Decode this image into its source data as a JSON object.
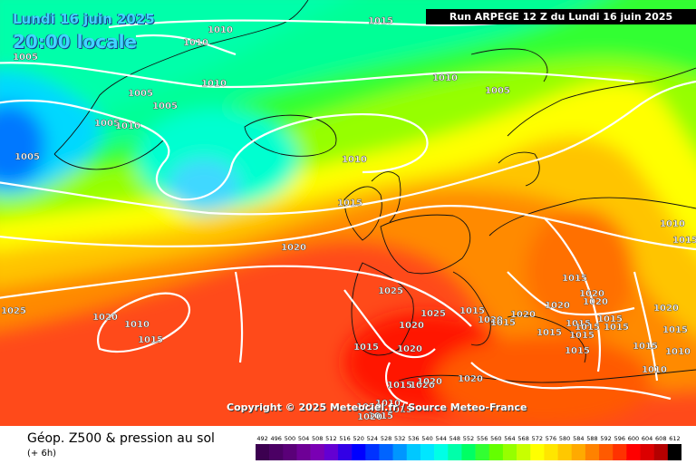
{
  "header": {
    "date": "Lundi 16 juin 2025",
    "time": "20:00 locale",
    "run": "Run ARPEGE 12 Z du Lundi 16 juin 2025"
  },
  "map": {
    "copyright": "Copyright © 2025 Meteociel.fr / Source Meteo-France",
    "isobar_labels": [
      {
        "text": "1015"
      },
      {
        "text": "1010"
      },
      {
        "text": "1010"
      },
      {
        "text": "1005"
      },
      {
        "text": "1010"
      },
      {
        "text": "1005"
      },
      {
        "text": "1005"
      },
      {
        "text": "1005"
      },
      {
        "text": "1010"
      },
      {
        "text": "1010"
      },
      {
        "text": "1005"
      },
      {
        "text": "1005"
      },
      {
        "text": "1010"
      },
      {
        "text": "1015"
      },
      {
        "text": "1020"
      },
      {
        "text": "1025"
      },
      {
        "text": "1025"
      },
      {
        "text": "1020"
      },
      {
        "text": "1010"
      },
      {
        "text": "1015"
      },
      {
        "text": "1020"
      },
      {
        "text": "1025"
      },
      {
        "text": "1015"
      },
      {
        "text": "1015"
      },
      {
        "text": "1020"
      },
      {
        "text": "1015"
      },
      {
        "text": "1020"
      },
      {
        "text": "1020"
      },
      {
        "text": "1015"
      },
      {
        "text": "1015"
      },
      {
        "text": "1015"
      },
      {
        "text": "1020"
      },
      {
        "text": "1015"
      },
      {
        "text": "1020"
      },
      {
        "text": "1015"
      },
      {
        "text": "1015"
      },
      {
        "text": "1015"
      },
      {
        "text": "1020"
      },
      {
        "text": "1015"
      },
      {
        "text": "1015"
      },
      {
        "text": "1010"
      },
      {
        "text": "1015"
      },
      {
        "text": "1010"
      },
      {
        "text": "1020"
      },
      {
        "text": "1020"
      },
      {
        "text": "1015"
      },
      {
        "text": "1015"
      },
      {
        "text": "1010"
      },
      {
        "text": "1015"
      },
      {
        "text": "1020"
      },
      {
        "text": "1020"
      },
      {
        "text": "1020"
      },
      {
        "text": "1020"
      },
      {
        "text": "1010"
      },
      {
        "text": "1015"
      }
    ]
  },
  "legend": {
    "product": "Géop. Z500 & pression au sol",
    "step": "(+ 6h)",
    "scale": [
      {
        "value": "492",
        "color": "#3c0050"
      },
      {
        "value": "496",
        "color": "#4b0064"
      },
      {
        "value": "500",
        "color": "#5a0078"
      },
      {
        "value": "504",
        "color": "#6e0096"
      },
      {
        "value": "508",
        "color": "#7a00b4"
      },
      {
        "value": "512",
        "color": "#6400d2"
      },
      {
        "value": "516",
        "color": "#3200e6"
      },
      {
        "value": "520",
        "color": "#0000ff"
      },
      {
        "value": "524",
        "color": "#0032ff"
      },
      {
        "value": "528",
        "color": "#0064ff"
      },
      {
        "value": "532",
        "color": "#0096ff"
      },
      {
        "value": "536",
        "color": "#00c8ff"
      },
      {
        "value": "540",
        "color": "#00e6ff"
      },
      {
        "value": "544",
        "color": "#00ffe6"
      },
      {
        "value": "548",
        "color": "#00ffaa"
      },
      {
        "value": "552",
        "color": "#00ff64"
      },
      {
        "value": "556",
        "color": "#32ff32"
      },
      {
        "value": "560",
        "color": "#64ff00"
      },
      {
        "value": "564",
        "color": "#96ff00"
      },
      {
        "value": "568",
        "color": "#c8ff00"
      },
      {
        "value": "572",
        "color": "#ffff00"
      },
      {
        "value": "576",
        "color": "#ffe600"
      },
      {
        "value": "580",
        "color": "#ffc800"
      },
      {
        "value": "584",
        "color": "#ffaa00"
      },
      {
        "value": "588",
        "color": "#ff8200"
      },
      {
        "value": "592",
        "color": "#ff5a00"
      },
      {
        "value": "596",
        "color": "#ff3200"
      },
      {
        "value": "600",
        "color": "#ff0000"
      },
      {
        "value": "604",
        "color": "#dc0000"
      },
      {
        "value": "608",
        "color": "#b40000"
      },
      {
        "value": "612",
        "color": "#000000"
      }
    ]
  }
}
